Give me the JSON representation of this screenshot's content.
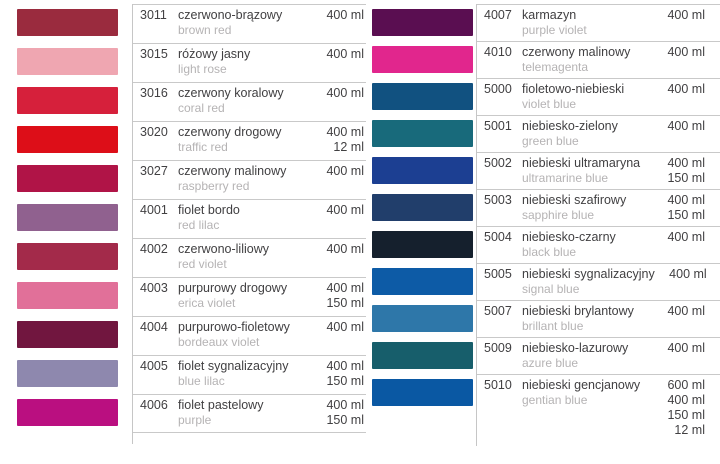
{
  "page": {
    "background": "#ffffff",
    "divider_color": "#c6c6c6"
  },
  "chart_type": "color-catalog-table",
  "tables": [
    {
      "position": "left",
      "rows": [
        {
          "code": "3011",
          "name_pl": "czerwono-brązowy",
          "name_en": "brown red",
          "volumes": [
            "400 ml"
          ],
          "color": "#9a2b3e"
        },
        {
          "code": "3015",
          "name_pl": "różowy jasny",
          "name_en": "light rose",
          "volumes": [
            "400 ml"
          ],
          "color": "#efa6b1"
        },
        {
          "code": "3016",
          "name_pl": "czerwony koralowy",
          "name_en": "coral red",
          "volumes": [
            "400 ml"
          ],
          "color": "#d6203b"
        },
        {
          "code": "3020",
          "name_pl": "czerwony drogowy",
          "name_en": "traffic red",
          "volumes": [
            "400 ml",
            "12 ml"
          ],
          "color": "#dd0e18"
        },
        {
          "code": "3027",
          "name_pl": "czerwony malinowy",
          "name_en": "raspberry red",
          "volumes": [
            "400 ml"
          ],
          "color": "#b01447"
        },
        {
          "code": "4001",
          "name_pl": "fiolet bordo",
          "name_en": "red lilac",
          "volumes": [
            "400 ml"
          ],
          "color": "#90618f"
        },
        {
          "code": "4002",
          "name_pl": "czerwono-liliowy",
          "name_en": "red violet",
          "volumes": [
            "400 ml"
          ],
          "color": "#a32a4a"
        },
        {
          "code": "4003",
          "name_pl": "purpurowy drogowy",
          "name_en": "erica violet",
          "volumes": [
            "400 ml",
            "150 ml"
          ],
          "color": "#e17099"
        },
        {
          "code": "4004",
          "name_pl": "purpurowo-fioletowy",
          "name_en": "bordeaux violet",
          "volumes": [
            "400 ml"
          ],
          "color": "#71163f"
        },
        {
          "code": "4005",
          "name_pl": "fiolet sygnalizacyjny",
          "name_en": "blue lilac",
          "volumes": [
            "400 ml",
            "150 ml"
          ],
          "color": "#8e88ae"
        },
        {
          "code": "4006",
          "name_pl": "fiolet pastelowy",
          "name_en": "purple",
          "volumes": [
            "400 ml",
            "150 ml"
          ],
          "color": "#ba0f80"
        }
      ]
    },
    {
      "position": "right",
      "rows": [
        {
          "code": "4007",
          "name_pl": "karmazyn",
          "name_en": "purple violet",
          "volumes": [
            "400 ml"
          ],
          "color": "#5a0e51"
        },
        {
          "code": "4010",
          "name_pl": "czerwony malinowy",
          "name_en": "telemagenta",
          "volumes": [
            "400 ml"
          ],
          "color": "#e1268d"
        },
        {
          "code": "5000",
          "name_pl": "fioletowo-niebieski",
          "name_en": "violet blue",
          "volumes": [
            "400 ml"
          ],
          "color": "#115180"
        },
        {
          "code": "5001",
          "name_pl": "niebiesko-zielony",
          "name_en": "green blue",
          "volumes": [
            "400 ml"
          ],
          "color": "#186a7b"
        },
        {
          "code": "5002",
          "name_pl": "niebieski ultramaryna",
          "name_en": "ultramarine blue",
          "volumes": [
            "400 ml",
            "150 ml"
          ],
          "color": "#1c3f92"
        },
        {
          "code": "5003",
          "name_pl": "niebieski szafirowy",
          "name_en": "sapphire blue",
          "volumes": [
            "400 ml",
            "150 ml"
          ],
          "color": "#213e6b"
        },
        {
          "code": "5004",
          "name_pl": "niebiesko-czarny",
          "name_en": "black blue",
          "volumes": [
            "400 ml"
          ],
          "color": "#15202d"
        },
        {
          "code": "5005",
          "name_pl": "niebieski sygnalizacyjny",
          "name_en": "signal blue",
          "volumes": [
            "400 ml"
          ],
          "color": "#0d5ba6"
        },
        {
          "code": "5007",
          "name_pl": "niebieski brylantowy",
          "name_en": "brillant blue",
          "volumes": [
            "400 ml"
          ],
          "color": "#2e77a9"
        },
        {
          "code": "5009",
          "name_pl": "niebiesko-lazurowy",
          "name_en": "azure blue",
          "volumes": [
            "400 ml"
          ],
          "color": "#175e6b"
        },
        {
          "code": "5010",
          "name_pl": "niebieski gencjanowy",
          "name_en": "gentian blue",
          "volumes": [
            "600 ml",
            "400 ml",
            "150 ml",
            "12 ml"
          ],
          "color": "#0a58a3"
        }
      ]
    }
  ]
}
